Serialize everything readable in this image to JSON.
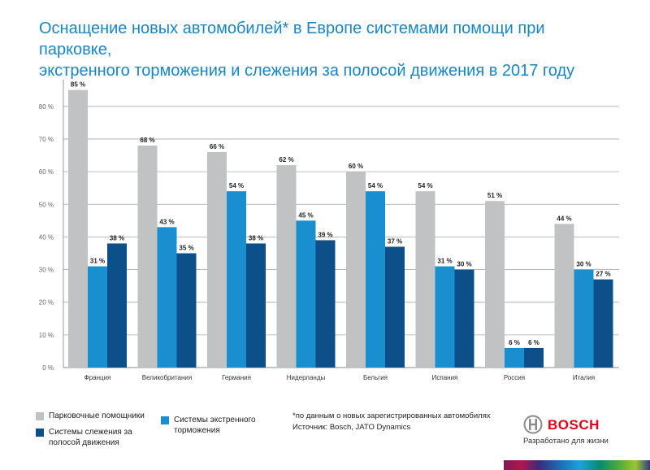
{
  "title_line1": "Оснащение новых автомобилей* в Европе системами помощи при парковке,",
  "title_line2": "экстренного торможения и слежения за полосой движения в 2017 году",
  "chart_data": {
    "type": "bar",
    "categories": [
      "Франция",
      "Великобритания",
      "Германия",
      "Нидерланды",
      "Бельгия",
      "Испания",
      "Россия",
      "Италия"
    ],
    "series": [
      {
        "name": "Парковочные помощники",
        "color": "#c1c2c4",
        "values": [
          85,
          68,
          66,
          62,
          60,
          54,
          51,
          44
        ]
      },
      {
        "name": "Системы экстренного торможения",
        "color": "#1a8fd0",
        "values": [
          31,
          43,
          54,
          45,
          54,
          31,
          6,
          30
        ]
      },
      {
        "name": "Системы слежения за полосой движения",
        "color": "#0d5089",
        "values": [
          38,
          35,
          38,
          39,
          37,
          30,
          6,
          27
        ]
      }
    ],
    "ylim": [
      0,
      85
    ],
    "yticks": [
      0,
      10,
      20,
      30,
      40,
      50,
      60,
      70,
      80
    ],
    "tick_suffix": " %",
    "label_suffix": " %",
    "grid": true
  },
  "legend": {
    "parking": "Парковочные помощники",
    "braking_l1": "Системы экстренного",
    "braking_l2": "торможения",
    "lane_l1": "Системы слежения за",
    "lane_l2": "полосой движения"
  },
  "note_line1": "*по данным о новых зарегистрированных автомобилях",
  "note_line2": "Источник: Bosch, JATO Dynamics",
  "brand_name": "BOSCH",
  "brand_slogan": "Разработано для жизни"
}
